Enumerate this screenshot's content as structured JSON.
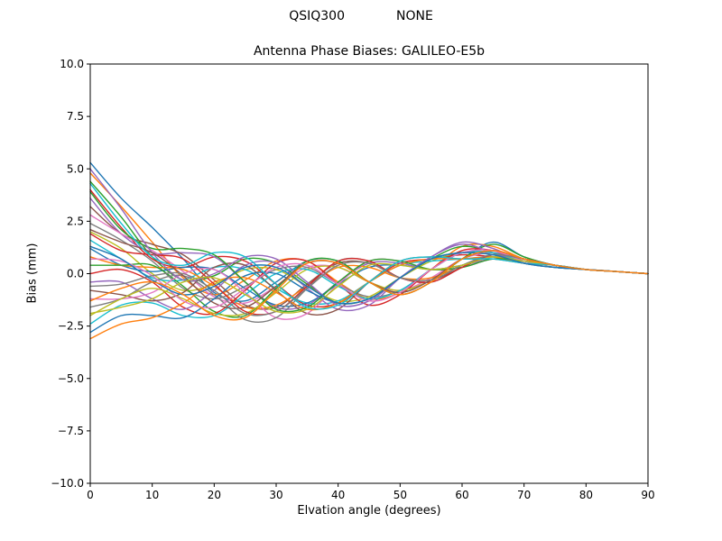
{
  "figure": {
    "background": "#ffffff",
    "plot_border_color": "#000000",
    "tick_color": "#000000"
  },
  "chart_data": {
    "type": "line",
    "suptitle": {
      "left": "QSIQ300",
      "right": "NONE"
    },
    "title": "Antenna Phase Biases: GALILEO-E5b",
    "xlabel": "Elvation angle (degrees)",
    "ylabel": "Bias (mm)",
    "xlim": [
      0,
      90
    ],
    "ylim": [
      -10,
      10
    ],
    "grid": false,
    "legend": "none",
    "xticks": [
      0,
      10,
      20,
      30,
      40,
      50,
      60,
      70,
      80,
      90
    ],
    "xtick_labels": [
      "0",
      "10",
      "20",
      "30",
      "40",
      "50",
      "60",
      "70",
      "80",
      "90"
    ],
    "ytick_values": [
      -10,
      -7.5,
      -5,
      -2.5,
      0,
      2.5,
      5,
      7.5,
      10
    ],
    "ytick_labels": [
      "−10.0",
      "−7.5",
      "−5.0",
      "−2.5",
      "0.0",
      "2.5",
      "5.0",
      "7.5",
      "10.0"
    ],
    "palette": [
      "#1f77b4",
      "#ff7f0e",
      "#2ca02c",
      "#d62728",
      "#9467bd",
      "#8c564b",
      "#e377c2",
      "#7f7f7f",
      "#bcbd22",
      "#17becf"
    ],
    "x": [
      0,
      5,
      10,
      15,
      20,
      25,
      30,
      35,
      40,
      45,
      50,
      55,
      60,
      65,
      70,
      75,
      80,
      85,
      90
    ],
    "series": [
      {
        "name": "line-01",
        "values": [
          5.3,
          3.6,
          2.2,
          0.7,
          -0.9,
          -1.3,
          -0.4,
          0.6,
          0.6,
          -0.4,
          -0.9,
          -0.3,
          0.7,
          1.5,
          0.8,
          0.4,
          0.2,
          0.1,
          0.0
        ]
      },
      {
        "name": "line-02",
        "values": [
          4.8,
          3.2,
          1.5,
          -0.2,
          -1.0,
          -0.3,
          0.6,
          0.6,
          -0.4,
          -1.2,
          -0.9,
          0.2,
          1.3,
          1.3,
          0.7,
          0.4,
          0.2,
          0.1,
          0.0
        ]
      },
      {
        "name": "line-03",
        "values": [
          4.4,
          2.7,
          0.8,
          -0.3,
          -0.1,
          0.7,
          0.5,
          -0.5,
          -1.4,
          -1.2,
          -0.2,
          0.7,
          1.3,
          1.0,
          0.5,
          0.3,
          0.2,
          0.1,
          0.0
        ]
      },
      {
        "name": "line-04",
        "values": [
          4.0,
          2.2,
          0.7,
          0.3,
          0.8,
          0.6,
          -0.5,
          -1.5,
          -1.4,
          -0.4,
          0.5,
          0.7,
          0.9,
          0.8,
          0.5,
          0.4,
          0.2,
          0.1,
          0.0
        ]
      },
      {
        "name": "line-05",
        "values": [
          3.6,
          1.9,
          1.0,
          1.0,
          0.8,
          -0.4,
          -1.6,
          -1.5,
          -0.4,
          0.5,
          0.5,
          0.2,
          0.4,
          0.7,
          0.6,
          0.4,
          0.2,
          0.1,
          0.0
        ]
      },
      {
        "name": "line-06",
        "values": [
          3.2,
          1.9,
          1.4,
          0.9,
          -0.3,
          -1.5,
          -1.6,
          -0.5,
          0.5,
          0.5,
          -0.2,
          -0.3,
          0.3,
          0.9,
          0.7,
          0.4,
          0.2,
          0.1,
          0.0
        ]
      },
      {
        "name": "line-07",
        "values": [
          2.8,
          1.9,
          1.1,
          0.1,
          -1.1,
          -1.4,
          -0.6,
          0.3,
          0.3,
          -0.4,
          -0.8,
          -0.2,
          0.7,
          1.0,
          0.7,
          0.4,
          0.2,
          0.1,
          0.0
        ]
      },
      {
        "name": "line-08",
        "values": [
          2.4,
          1.6,
          0.6,
          -0.7,
          -1.2,
          -0.6,
          0.2,
          0.3,
          -0.5,
          -1.1,
          -0.8,
          0.2,
          1.0,
          1.0,
          0.6,
          0.4,
          0.2,
          0.1,
          0.0
        ]
      },
      {
        "name": "line-09",
        "values": [
          2.0,
          1.2,
          0.0,
          -0.8,
          -0.5,
          0.2,
          0.2,
          -0.6,
          -1.3,
          -1.1,
          -0.2,
          0.6,
          1.0,
          0.9,
          0.5,
          0.3,
          0.2,
          0.1,
          0.0
        ]
      },
      {
        "name": "line-10",
        "values": [
          1.6,
          0.7,
          -0.2,
          -0.3,
          0.3,
          0.2,
          -0.7,
          -1.4,
          -1.3,
          -0.4,
          0.4,
          0.6,
          0.7,
          0.8,
          0.5,
          0.4,
          0.2,
          0.1,
          0.0
        ]
      },
      {
        "name": "line-11",
        "values": [
          1.2,
          0.4,
          0.1,
          0.3,
          0.2,
          -0.7,
          -1.5,
          -1.4,
          -0.5,
          0.3,
          0.4,
          0.2,
          0.4,
          0.8,
          0.6,
          0.4,
          0.2,
          0.1,
          0.0
        ]
      },
      {
        "name": "line-12",
        "values": [
          0.8,
          0.4,
          0.3,
          0.2,
          -0.6,
          -1.6,
          -1.5,
          -0.6,
          0.3,
          0.3,
          -0.2,
          -0.2,
          0.4,
          0.9,
          0.7,
          0.4,
          0.2,
          0.1,
          0.0
        ]
      },
      {
        "name": "line-13",
        "values": [
          0.4,
          0.4,
          0.4,
          -0.6,
          -1.8,
          -2.0,
          -0.7,
          0.6,
          0.6,
          -0.4,
          -1.0,
          -0.4,
          0.7,
          1.4,
          0.8,
          0.4,
          0.2,
          0.1,
          0.0
        ]
      },
      {
        "name": "line-14",
        "values": [
          0.0,
          0.2,
          -0.4,
          -1.6,
          -1.9,
          -0.8,
          0.5,
          0.6,
          -0.5,
          -1.5,
          -1.0,
          0.2,
          1.1,
          1.1,
          0.6,
          0.4,
          0.2,
          0.1,
          0.0
        ]
      },
      {
        "name": "line-15",
        "values": [
          -0.4,
          -0.4,
          -1.2,
          -1.7,
          -0.8,
          0.4,
          0.5,
          -0.7,
          -1.7,
          -1.5,
          -0.2,
          0.8,
          1.4,
          1.0,
          0.5,
          0.3,
          0.2,
          0.1,
          0.0
        ]
      },
      {
        "name": "line-16",
        "values": [
          -0.8,
          -1.0,
          -1.3,
          -0.9,
          0.3,
          0.4,
          -0.8,
          -1.9,
          -1.7,
          -0.4,
          0.6,
          0.8,
          0.7,
          0.7,
          0.5,
          0.4,
          0.2,
          0.1,
          0.0
        ]
      },
      {
        "name": "line-17",
        "values": [
          -1.2,
          -1.2,
          -0.9,
          0.0,
          0.2,
          -0.9,
          -2.1,
          -1.9,
          -0.5,
          0.6,
          0.6,
          0.2,
          0.3,
          0.7,
          0.6,
          0.4,
          0.2,
          0.1,
          0.0
        ]
      },
      {
        "name": "line-18",
        "values": [
          -1.6,
          -1.2,
          -0.4,
          -0.1,
          -1.0,
          -2.2,
          -2.1,
          -0.7,
          0.6,
          0.6,
          -0.2,
          -0.4,
          0.3,
          0.9,
          0.7,
          0.4,
          0.2,
          0.1,
          0.0
        ]
      },
      {
        "name": "line-19",
        "values": [
          -2.0,
          -1.2,
          -0.7,
          -1.2,
          -1.9,
          -1.9,
          -0.9,
          0.2,
          0.3,
          -0.4,
          -0.8,
          -0.3,
          0.7,
          1.1,
          0.7,
          0.4,
          0.2,
          0.1,
          0.0
        ]
      },
      {
        "name": "line-20",
        "values": [
          -2.4,
          -1.5,
          -1.4,
          -2.0,
          -2.0,
          -1.0,
          0.0,
          0.2,
          -0.6,
          -1.2,
          -0.8,
          0.2,
          1.0,
          1.0,
          0.6,
          0.4,
          0.2,
          0.1,
          0.0
        ]
      },
      {
        "name": "line-21",
        "values": [
          -2.8,
          -2.0,
          -2.0,
          -2.1,
          -1.2,
          -0.1,
          0.0,
          -0.8,
          -1.4,
          -1.2,
          -0.2,
          0.7,
          1.0,
          0.9,
          0.5,
          0.3,
          0.2,
          0.1,
          0.0
        ]
      },
      {
        "name": "line-22",
        "values": [
          -3.1,
          -2.4,
          -2.1,
          -1.4,
          -0.4,
          -0.2,
          -0.9,
          -1.7,
          -1.4,
          -0.4,
          0.4,
          0.7,
          0.7,
          0.8,
          0.5,
          0.4,
          0.2,
          0.1,
          0.0
        ]
      },
      {
        "name": "line-23",
        "values": [
          3.9,
          2.1,
          1.2,
          1.2,
          0.9,
          -0.4,
          -1.7,
          -1.6,
          -0.4,
          0.6,
          0.6,
          0.2,
          0.3,
          0.7,
          0.6,
          0.4,
          0.2,
          0.1,
          0.0
        ]
      },
      {
        "name": "line-24",
        "values": [
          1.9,
          1.1,
          0.9,
          0.7,
          -0.5,
          -1.8,
          -1.8,
          -0.6,
          0.6,
          0.6,
          -0.2,
          -0.4,
          0.3,
          0.9,
          0.7,
          0.4,
          0.2,
          0.1,
          0.0
        ]
      },
      {
        "name": "line-25",
        "values": [
          5.0,
          3.1,
          1.0,
          -0.3,
          0.0,
          0.8,
          0.7,
          -0.4,
          -1.5,
          -1.3,
          -0.2,
          0.8,
          1.5,
          1.2,
          0.6,
          0.4,
          0.2,
          0.1,
          0.0
        ]
      },
      {
        "name": "line-26",
        "values": [
          2.1,
          1.5,
          1.0,
          -0.1,
          -1.4,
          -1.6,
          -0.6,
          0.5,
          0.5,
          -0.4,
          -0.9,
          -0.3,
          0.7,
          1.1,
          0.7,
          0.4,
          0.2,
          0.1,
          0.0
        ]
      },
      {
        "name": "line-27",
        "values": [
          0.7,
          0.6,
          -0.1,
          -1.3,
          -1.6,
          -0.7,
          0.3,
          0.4,
          -0.5,
          -1.3,
          -0.9,
          0.2,
          1.0,
          1.1,
          0.6,
          0.4,
          0.2,
          0.1,
          0.0
        ]
      },
      {
        "name": "line-28",
        "values": [
          -0.6,
          -0.5,
          -0.1,
          0.0,
          -0.8,
          -1.9,
          -1.8,
          -0.7,
          0.4,
          0.5,
          -0.2,
          -0.3,
          0.4,
          0.9,
          0.7,
          0.4,
          0.2,
          0.1,
          0.0
        ]
      },
      {
        "name": "line-29",
        "values": [
          -1.9,
          -1.6,
          -1.2,
          -0.4,
          -0.2,
          -1.0,
          -1.8,
          -1.7,
          -0.6,
          0.4,
          0.4,
          0.2,
          0.4,
          0.8,
          0.6,
          0.4,
          0.2,
          0.1,
          0.0
        ]
      },
      {
        "name": "line-30",
        "values": [
          4.3,
          2.4,
          0.8,
          0.4,
          1.0,
          0.8,
          -0.5,
          -1.6,
          -1.5,
          -0.4,
          0.6,
          0.8,
          0.7,
          0.7,
          0.5,
          0.4,
          0.2,
          0.1,
          0.0
        ]
      },
      {
        "name": "line-31",
        "values": [
          1.3,
          0.7,
          -0.3,
          -1.0,
          -0.6,
          0.3,
          0.3,
          -0.6,
          -1.4,
          -1.2,
          -0.2,
          0.7,
          1.0,
          0.9,
          0.5,
          0.3,
          0.2,
          0.1,
          0.0
        ]
      },
      {
        "name": "line-32",
        "values": [
          -1.3,
          -0.7,
          -0.4,
          -1.0,
          -2.0,
          -2.1,
          -0.8,
          0.5,
          0.5,
          -0.4,
          -1.0,
          -0.4,
          0.7,
          1.1,
          0.7,
          0.4,
          0.2,
          0.1,
          0.0
        ]
      }
    ]
  }
}
